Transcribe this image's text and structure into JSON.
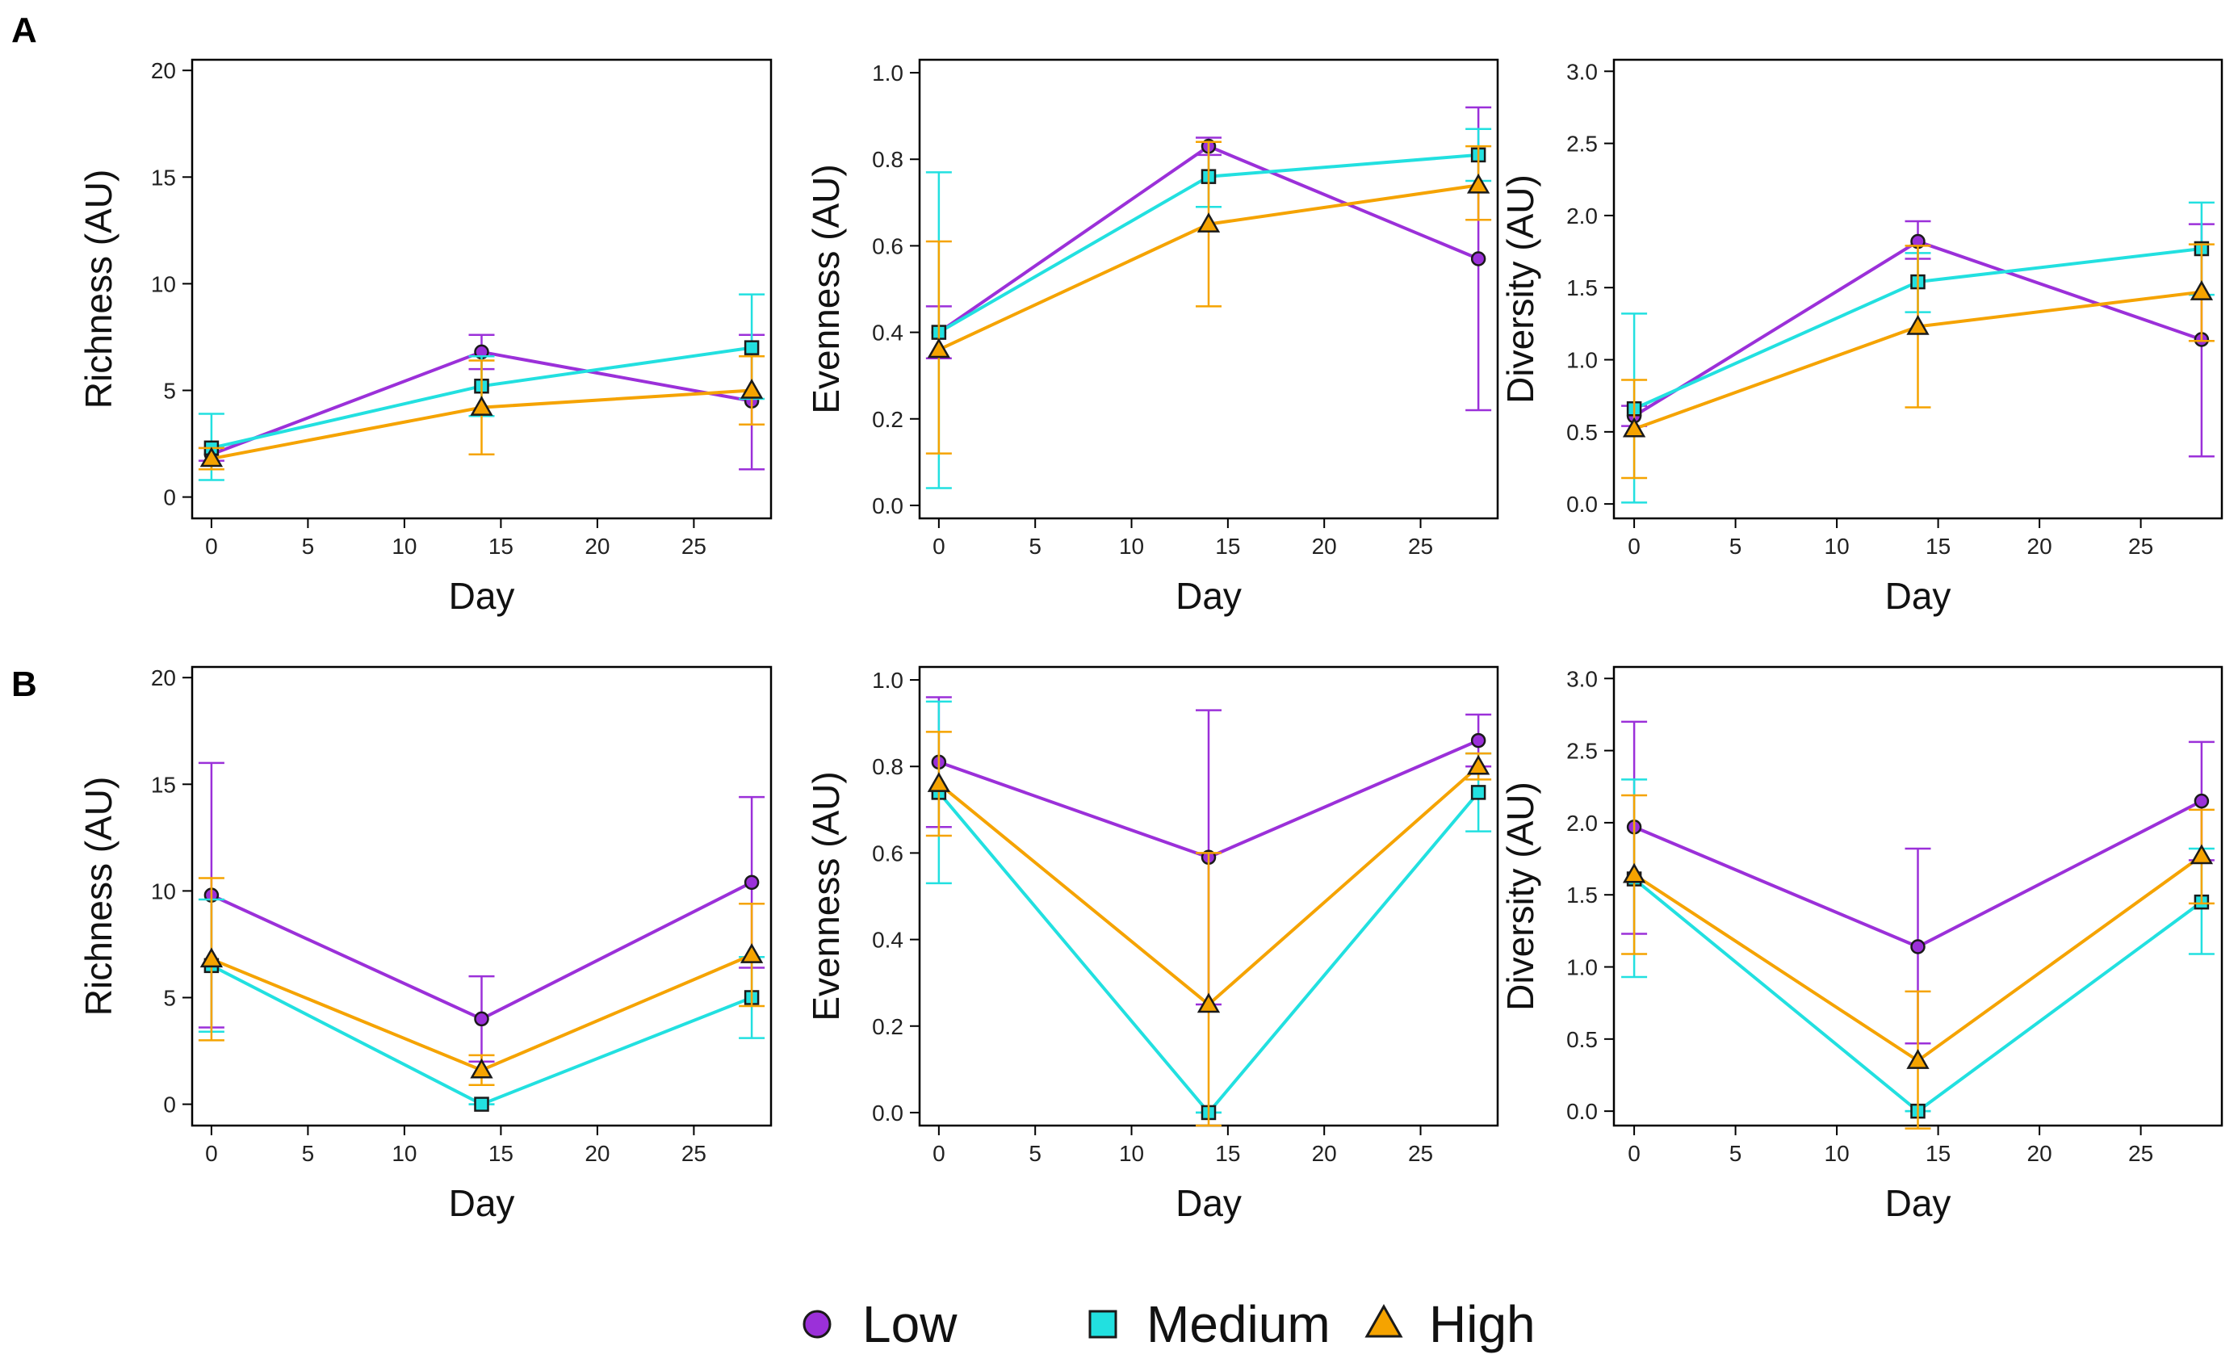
{
  "figure": {
    "panel_labels": [
      "A",
      "B"
    ],
    "legend": [
      {
        "name": "Low",
        "marker": "circle",
        "color": "#9b30d9"
      },
      {
        "name": "Medium",
        "marker": "square",
        "color": "#22e0e0"
      },
      {
        "name": "High",
        "marker": "triangle",
        "color": "#f5a300"
      }
    ]
  },
  "chart_data": [
    {
      "type": "line",
      "panel": "A",
      "title": "",
      "xlabel": "Day",
      "ylabel": "Richness (AU)",
      "xlim": [
        -1,
        29
      ],
      "ylim": [
        -1,
        20.5
      ],
      "xticks": [
        0,
        5,
        10,
        15,
        20,
        25
      ],
      "yticks": [
        0,
        5,
        10,
        15,
        20
      ],
      "ytick_labels": [
        "0",
        "5",
        "10",
        "15",
        "20"
      ],
      "x": [
        0,
        14,
        28
      ],
      "series": [
        {
          "name": "Low",
          "values": [
            2.0,
            6.8,
            4.5
          ],
          "err_low": [
            1.7,
            6.0,
            1.3
          ],
          "err_high": [
            2.3,
            7.6,
            7.6
          ]
        },
        {
          "name": "Medium",
          "values": [
            2.3,
            5.2,
            7.0
          ],
          "err_low": [
            0.8,
            3.8,
            4.6
          ],
          "err_high": [
            3.9,
            6.6,
            9.5
          ]
        },
        {
          "name": "High",
          "values": [
            1.8,
            4.2,
            5.0
          ],
          "err_low": [
            1.3,
            2.0,
            3.4
          ],
          "err_high": [
            2.3,
            6.4,
            6.6
          ]
        }
      ]
    },
    {
      "type": "line",
      "panel": "A",
      "title": "",
      "xlabel": "Day",
      "ylabel": "Evenness (AU)",
      "xlim": [
        -1,
        29
      ],
      "ylim": [
        -0.03,
        1.03
      ],
      "xticks": [
        0,
        5,
        10,
        15,
        20,
        25
      ],
      "yticks": [
        0,
        0.2,
        0.4,
        0.6,
        0.8,
        1.0
      ],
      "ytick_labels": [
        "0.0",
        "0.2",
        "0.4",
        "0.6",
        "0.8",
        "1.0"
      ],
      "x": [
        0,
        14,
        28
      ],
      "series": [
        {
          "name": "Low",
          "values": [
            0.4,
            0.83,
            0.57
          ],
          "err_low": [
            0.34,
            0.81,
            0.22
          ],
          "err_high": [
            0.46,
            0.85,
            0.92
          ]
        },
        {
          "name": "Medium",
          "values": [
            0.4,
            0.76,
            0.81
          ],
          "err_low": [
            0.04,
            0.69,
            0.75
          ],
          "err_high": [
            0.77,
            0.84,
            0.87
          ]
        },
        {
          "name": "High",
          "values": [
            0.36,
            0.65,
            0.74
          ],
          "err_low": [
            0.12,
            0.46,
            0.66
          ],
          "err_high": [
            0.61,
            0.84,
            0.83
          ]
        }
      ]
    },
    {
      "type": "line",
      "panel": "A",
      "title": "",
      "xlabel": "Day",
      "ylabel": "Diversity (AU)",
      "xlim": [
        -1,
        29
      ],
      "ylim": [
        -0.1,
        3.08
      ],
      "xticks": [
        0,
        5,
        10,
        15,
        20,
        25
      ],
      "yticks": [
        0,
        0.5,
        1.0,
        1.5,
        2.0,
        2.5,
        3.0
      ],
      "ytick_labels": [
        "0.0",
        "0.5",
        "1.0",
        "1.5",
        "2.0",
        "2.5",
        "3.0"
      ],
      "x": [
        0,
        14,
        28
      ],
      "series": [
        {
          "name": "Low",
          "values": [
            0.61,
            1.82,
            1.14
          ],
          "err_low": [
            0.54,
            1.7,
            0.33
          ],
          "err_high": [
            0.68,
            1.96,
            1.94
          ]
        },
        {
          "name": "Medium",
          "values": [
            0.66,
            1.54,
            1.77
          ],
          "err_low": [
            0.01,
            1.33,
            1.45
          ],
          "err_high": [
            1.32,
            1.74,
            2.09
          ]
        },
        {
          "name": "High",
          "values": [
            0.52,
            1.23,
            1.47
          ],
          "err_low": [
            0.18,
            0.67,
            1.13
          ],
          "err_high": [
            0.86,
            1.79,
            1.8
          ]
        }
      ]
    },
    {
      "type": "line",
      "panel": "B",
      "title": "",
      "xlabel": "Day",
      "ylabel": "Richness (AU)",
      "xlim": [
        -1,
        29
      ],
      "ylim": [
        -1,
        20.5
      ],
      "xticks": [
        0,
        5,
        10,
        15,
        20,
        25
      ],
      "yticks": [
        0,
        5,
        10,
        15,
        20
      ],
      "ytick_labels": [
        "0",
        "5",
        "10",
        "15",
        "20"
      ],
      "x": [
        0,
        14,
        28
      ],
      "series": [
        {
          "name": "Low",
          "values": [
            9.8,
            4.0,
            10.4
          ],
          "err_low": [
            3.6,
            2.0,
            6.4
          ],
          "err_high": [
            16.0,
            6.0,
            14.4
          ]
        },
        {
          "name": "Medium",
          "values": [
            6.5,
            0.0,
            5.0
          ],
          "err_low": [
            3.4,
            0.0,
            3.1
          ],
          "err_high": [
            9.6,
            0.0,
            6.9
          ]
        },
        {
          "name": "High",
          "values": [
            6.8,
            1.6,
            7.0
          ],
          "err_low": [
            3.0,
            0.9,
            4.6
          ],
          "err_high": [
            10.6,
            2.3,
            9.4
          ]
        }
      ]
    },
    {
      "type": "line",
      "panel": "B",
      "title": "",
      "xlabel": "Day",
      "ylabel": "Evenness (AU)",
      "xlim": [
        -1,
        29
      ],
      "ylim": [
        -0.03,
        1.03
      ],
      "xticks": [
        0,
        5,
        10,
        15,
        20,
        25
      ],
      "yticks": [
        0,
        0.2,
        0.4,
        0.6,
        0.8,
        1.0
      ],
      "ytick_labels": [
        "0.0",
        "0.2",
        "0.4",
        "0.6",
        "0.8",
        "1.0"
      ],
      "x": [
        0,
        14,
        28
      ],
      "series": [
        {
          "name": "Low",
          "values": [
            0.81,
            0.59,
            0.86
          ],
          "err_low": [
            0.66,
            0.25,
            0.8
          ],
          "err_high": [
            0.96,
            0.93,
            0.92
          ]
        },
        {
          "name": "Medium",
          "values": [
            0.74,
            0.0,
            0.74
          ],
          "err_low": [
            0.53,
            0.0,
            0.65
          ],
          "err_high": [
            0.95,
            0.0,
            0.83
          ]
        },
        {
          "name": "High",
          "values": [
            0.76,
            0.25,
            0.8
          ],
          "err_low": [
            0.64,
            -0.03,
            0.77
          ],
          "err_high": [
            0.88,
            0.6,
            0.83
          ]
        }
      ]
    },
    {
      "type": "line",
      "panel": "B",
      "title": "",
      "xlabel": "Day",
      "ylabel": "Diversity (AU)",
      "xlim": [
        -1,
        29
      ],
      "ylim": [
        -0.1,
        3.08
      ],
      "xticks": [
        0,
        5,
        10,
        15,
        20,
        25
      ],
      "yticks": [
        0,
        0.5,
        1.0,
        1.5,
        2.0,
        2.5,
        3.0
      ],
      "ytick_labels": [
        "0.0",
        "0.5",
        "1.0",
        "1.5",
        "2.0",
        "2.5",
        "3.0"
      ],
      "x": [
        0,
        14,
        28
      ],
      "series": [
        {
          "name": "Low",
          "values": [
            1.97,
            1.14,
            2.15
          ],
          "err_low": [
            1.23,
            0.47,
            1.74
          ],
          "err_high": [
            2.7,
            1.82,
            2.56
          ]
        },
        {
          "name": "Medium",
          "values": [
            1.61,
            0.0,
            1.45
          ],
          "err_low": [
            0.93,
            0.0,
            1.09
          ],
          "err_high": [
            2.3,
            0.0,
            1.82
          ]
        },
        {
          "name": "High",
          "values": [
            1.64,
            0.35,
            1.77
          ],
          "err_low": [
            1.09,
            -0.12,
            1.44
          ],
          "err_high": [
            2.19,
            0.83,
            2.09
          ]
        }
      ]
    }
  ]
}
